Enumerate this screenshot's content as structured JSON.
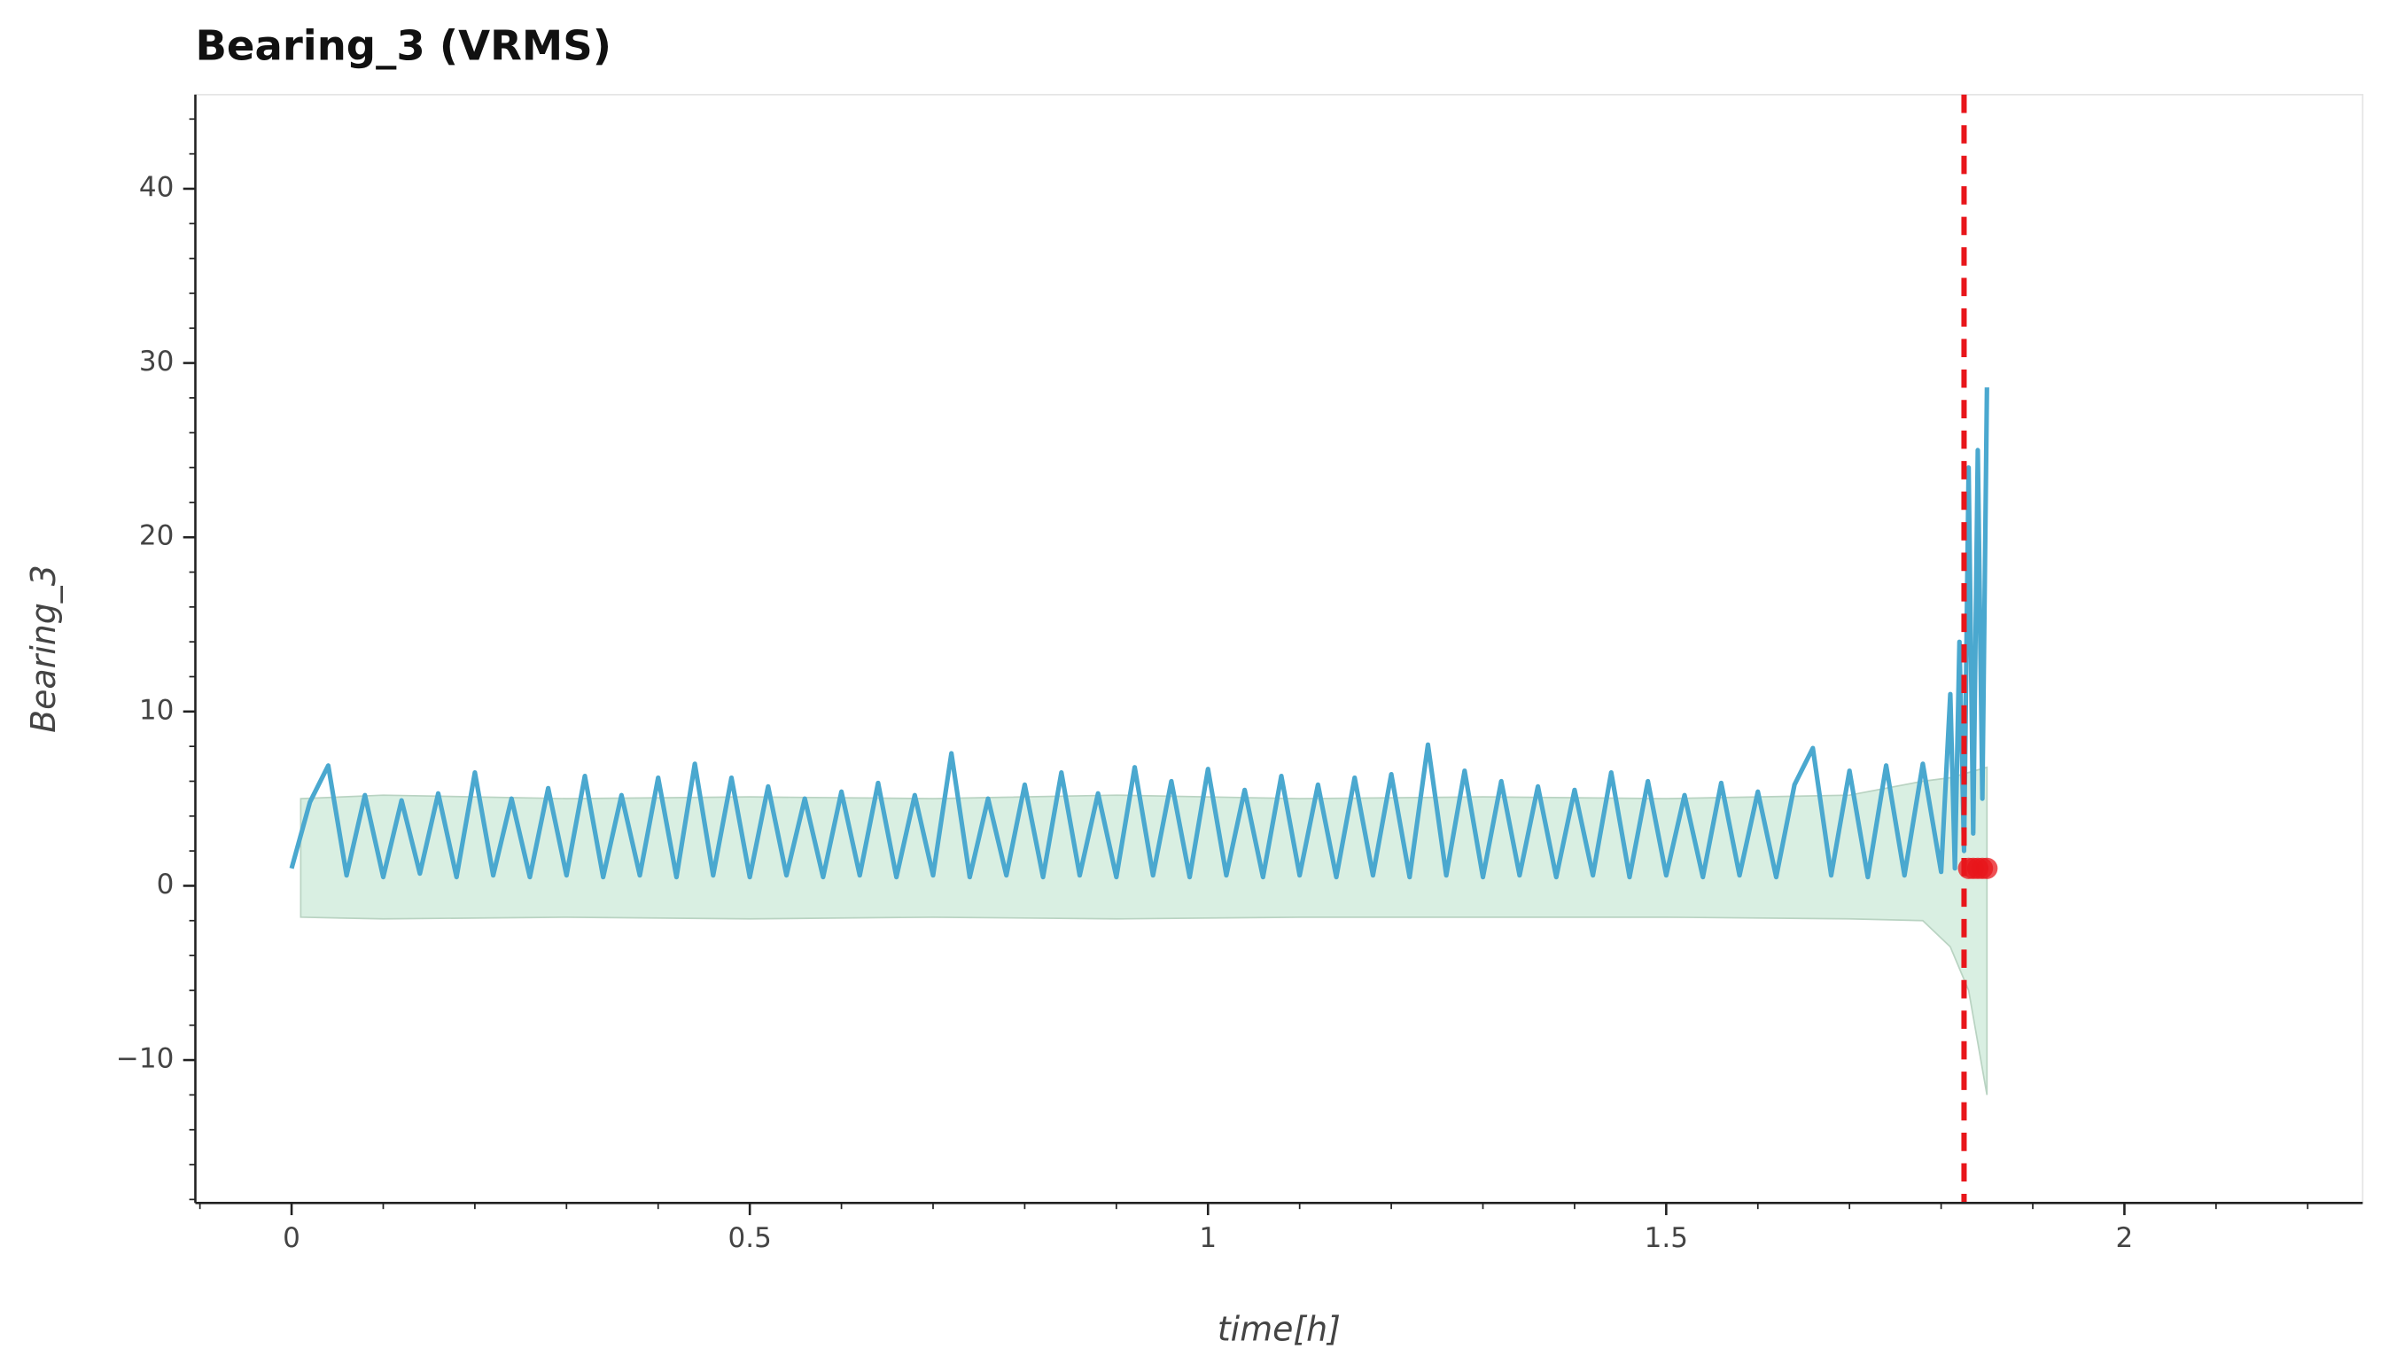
{
  "chart_data": {
    "type": "line",
    "title": "Bearing_3 (VRMS)",
    "xlabel": "time[h]",
    "ylabel": "Bearing_3",
    "color": "#4aa8cf",
    "x": [
      0,
      0.02,
      0.04,
      0.06,
      0.08,
      0.1,
      0.12,
      0.14,
      0.16,
      0.18,
      0.2,
      0.22,
      0.24,
      0.26,
      0.28,
      0.3,
      0.32,
      0.34,
      0.36,
      0.38,
      0.4,
      0.42,
      0.44,
      0.46,
      0.48,
      0.5,
      0.52,
      0.54,
      0.56,
      0.58,
      0.6,
      0.62,
      0.64,
      0.66,
      0.68,
      0.7,
      0.72,
      0.74,
      0.76,
      0.78,
      0.8,
      0.82,
      0.84,
      0.86,
      0.88,
      0.9,
      0.92,
      0.94,
      0.96,
      0.98,
      1,
      1.02,
      1.04,
      1.06,
      1.08,
      1.1,
      1.12,
      1.14,
      1.16,
      1.18,
      1.2,
      1.22,
      1.24,
      1.26,
      1.28,
      1.3,
      1.32,
      1.34,
      1.36,
      1.38,
      1.4,
      1.42,
      1.44,
      1.46,
      1.48,
      1.5,
      1.52,
      1.54,
      1.56,
      1.58,
      1.6,
      1.62,
      1.64,
      1.66,
      1.68,
      1.7,
      1.72,
      1.74,
      1.76,
      1.78,
      1.8,
      1.81,
      1.815,
      1.82,
      1.825,
      1.83,
      1.835,
      1.84,
      1.845,
      1.85
    ],
    "values": [
      1,
      4.8,
      6.9,
      0.6,
      5.2,
      0.5,
      4.9,
      0.7,
      5.3,
      0.5,
      6.5,
      0.6,
      5,
      0.5,
      5.6,
      0.6,
      6.3,
      0.5,
      5.2,
      0.6,
      6.2,
      0.5,
      7,
      0.6,
      6.2,
      0.5,
      5.7,
      0.6,
      5,
      0.5,
      5.4,
      0.6,
      5.9,
      0.5,
      5.2,
      0.6,
      7.6,
      0.5,
      5,
      0.6,
      5.8,
      0.5,
      6.5,
      0.6,
      5.3,
      0.5,
      6.8,
      0.6,
      6,
      0.5,
      6.7,
      0.6,
      5.5,
      0.5,
      6.3,
      0.6,
      5.8,
      0.5,
      6.2,
      0.6,
      6.4,
      0.5,
      8.1,
      0.6,
      6.6,
      0.5,
      6,
      0.6,
      5.7,
      0.5,
      5.5,
      0.6,
      6.5,
      0.5,
      6,
      0.6,
      5.2,
      0.5,
      5.9,
      0.6,
      5.4,
      0.5,
      5.8,
      7.9,
      0.6,
      6.6,
      0.5,
      6.9,
      0.6,
      7,
      0.8,
      11,
      1,
      14,
      2,
      24,
      3,
      25,
      5,
      28.6
    ],
    "band": {
      "color": "#d9efe2",
      "x": [
        0.01,
        0.1,
        0.3,
        0.5,
        0.7,
        0.9,
        1.1,
        1.3,
        1.5,
        1.7,
        1.78,
        1.81,
        1.83,
        1.85
      ],
      "upper": [
        5,
        5.2,
        5,
        5.1,
        5,
        5.2,
        5,
        5.1,
        5,
        5.2,
        6,
        6.2,
        6.5,
        6.8
      ],
      "lower": [
        -1.8,
        -1.9,
        -1.8,
        -1.9,
        -1.8,
        -1.9,
        -1.8,
        -1.8,
        -1.8,
        -1.9,
        -2,
        -3.5,
        -6,
        -12
      ]
    },
    "vline": {
      "x": 1.825,
      "color": "#e8161b"
    },
    "points": {
      "x": [
        1.83,
        1.835,
        1.84,
        1.845,
        1.85
      ],
      "y": [
        1,
        1,
        1,
        1,
        1
      ],
      "color": "#e8161b"
    },
    "xlim": [
      -0.105,
      2.26
    ],
    "ylim": [
      -18.2,
      45.4
    ],
    "xticks": [
      0,
      0.5,
      1,
      1.5,
      2
    ],
    "yticks": [
      {
        "value": -10,
        "label": "−10"
      },
      0,
      10,
      20,
      30,
      40
    ],
    "xticks_minor": [
      -0.1,
      0.1,
      0.2,
      0.3,
      0.4,
      0.6,
      0.7,
      0.8,
      0.9,
      1.1,
      1.2,
      1.3,
      1.4,
      1.6,
      1.7,
      1.8,
      1.9,
      2.1,
      2.2
    ],
    "yticks_minor": [
      -18,
      -16,
      -14,
      -12,
      -8,
      -6,
      -4,
      -2,
      2,
      4,
      6,
      8,
      12,
      14,
      16,
      18,
      22,
      24,
      26,
      28,
      32,
      34,
      36,
      38,
      42,
      44
    ]
  }
}
